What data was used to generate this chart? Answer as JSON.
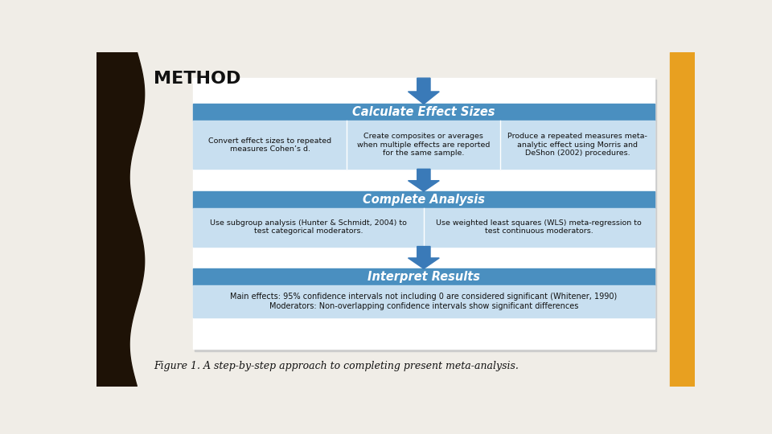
{
  "title": "METHOD",
  "figure_caption": "Figure 1. A step-by-step approach to completing present meta-analysis.",
  "bg_color": "#f0ede7",
  "left_bar_color": "#1e1206",
  "right_bar_color": "#e8a020",
  "diagram_bg": "#ffffff",
  "header_blue": "#4a8fc0",
  "subrow_blue": "#c8dff0",
  "arrow_color": "#3a7ab8",
  "steps": [
    {
      "header": "Calculate Effect Sizes",
      "cols": [
        "Convert effect sizes to repeated\nmeasures Cohen’s d.",
        "Create composites or averages\nwhen multiple effects are reported\nfor the same sample.",
        "Produce a repeated measures meta-\nanalytic effect using Morris and\nDeShon (2002) procedures."
      ],
      "ncols": 3
    },
    {
      "header": "Complete Analysis",
      "cols": [
        "Use subgroup analysis (Hunter & Schmidt, 2004) to\ntest categorical moderators.",
        "Use weighted least squares (WLS) meta-regression to\ntest continuous moderators."
      ],
      "ncols": 2
    },
    {
      "header": "Interpret Results",
      "cols": [
        "Main effects: 95% confidence intervals not including 0 are considered significant (Whitener, 1990)\nModerators: Non-overlapping confidence intervals show significant differences"
      ],
      "ncols": 1
    }
  ]
}
